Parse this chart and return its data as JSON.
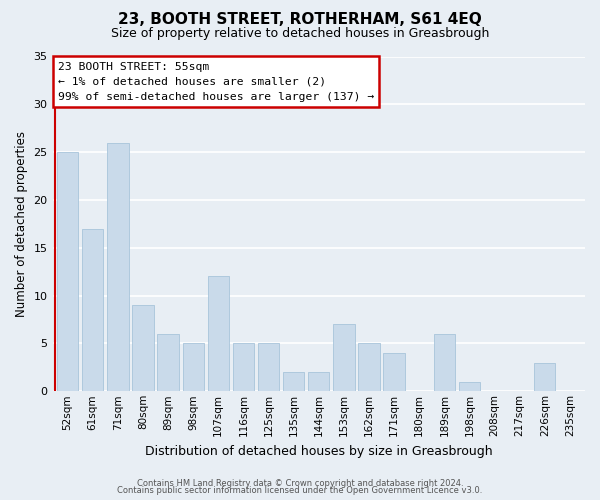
{
  "title": "23, BOOTH STREET, ROTHERHAM, S61 4EQ",
  "subtitle": "Size of property relative to detached houses in Greasbrough",
  "xlabel": "Distribution of detached houses by size in Greasbrough",
  "ylabel": "Number of detached properties",
  "bar_labels": [
    "52sqm",
    "61sqm",
    "71sqm",
    "80sqm",
    "89sqm",
    "98sqm",
    "107sqm",
    "116sqm",
    "125sqm",
    "135sqm",
    "144sqm",
    "153sqm",
    "162sqm",
    "171sqm",
    "180sqm",
    "189sqm",
    "198sqm",
    "208sqm",
    "217sqm",
    "226sqm",
    "235sqm"
  ],
  "bar_values": [
    25,
    17,
    26,
    9,
    6,
    5,
    12,
    5,
    5,
    2,
    2,
    7,
    5,
    4,
    0,
    6,
    1,
    0,
    0,
    3,
    0
  ],
  "bar_color": "#c9daea",
  "bar_edge_color": "#a8c4da",
  "annotation_line1": "23 BOOTH STREET: 55sqm",
  "annotation_line2": "← 1% of detached houses are smaller (2)",
  "annotation_line3": "99% of semi-detached houses are larger (137) →",
  "annotation_box_edge_color": "#cc0000",
  "annotation_box_facecolor": "white",
  "red_line_x": -0.5,
  "ylim": [
    0,
    35
  ],
  "yticks": [
    0,
    5,
    10,
    15,
    20,
    25,
    30,
    35
  ],
  "footer_line1": "Contains HM Land Registry data © Crown copyright and database right 2024.",
  "footer_line2": "Contains public sector information licensed under the Open Government Licence v3.0.",
  "bg_color": "#e8eef4",
  "plot_bg_color": "#e8eef4",
  "grid_color": "white",
  "title_fontsize": 11,
  "subtitle_fontsize": 9,
  "ylabel_fontsize": 8.5,
  "xlabel_fontsize": 9,
  "tick_fontsize": 8,
  "xtick_fontsize": 7.5
}
